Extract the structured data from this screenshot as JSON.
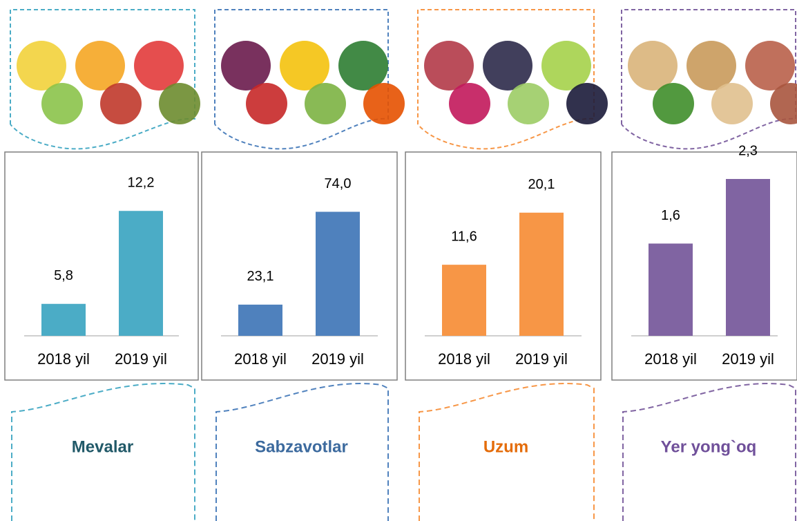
{
  "chart_data": [
    {
      "type": "bar",
      "title": "Mevalar",
      "title_color": "#215968",
      "categories": [
        "2018 yil",
        "2019 yil"
      ],
      "values": [
        5.8,
        12.2
      ],
      "value_labels": [
        "5,8",
        "12,2"
      ],
      "color": "#4bacc6",
      "ylim": [
        3.6,
        14.4
      ]
    },
    {
      "type": "bar",
      "title": "Sabzavotlar",
      "title_color": "#3c6a9e",
      "categories": [
        "2018 yil",
        "2019 yil"
      ],
      "values": [
        23.1,
        74.0
      ],
      "value_labels": [
        "23,1",
        "74,0"
      ],
      "color": "#4f81bd",
      "ylim": [
        6,
        92
      ]
    },
    {
      "type": "bar",
      "title": "Uzum",
      "title_color": "#e46c0a",
      "categories": [
        "2018 yil",
        "2019 yil"
      ],
      "values": [
        11.6,
        20.1
      ],
      "value_labels": [
        "11,6",
        "20,1"
      ],
      "color": "#f79646",
      "ylim": [
        0,
        25.6
      ]
    },
    {
      "type": "bar",
      "title": "Yer yong`oq",
      "title_color": "#70509a",
      "categories": [
        "2018 yil",
        "2019 yil"
      ],
      "values": [
        1.6,
        2.3
      ],
      "value_labels": [
        "1,6",
        "2,3"
      ],
      "color": "#8064a2",
      "ylim": [
        0.6,
        2.3
      ]
    }
  ]
}
